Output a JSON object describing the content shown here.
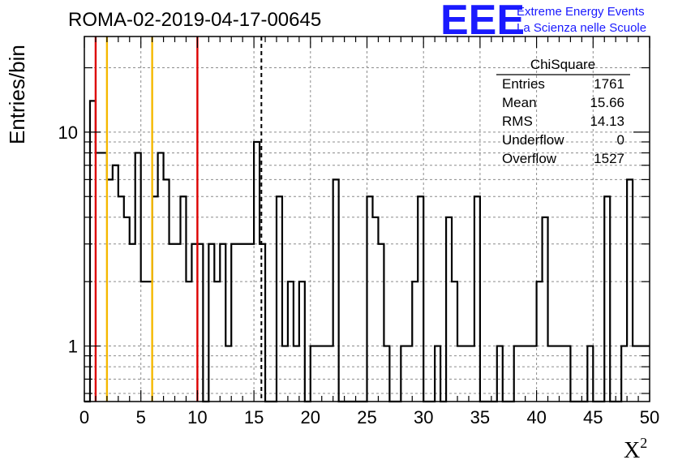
{
  "chart_data": {
    "type": "histogram",
    "title": "ROMA-02-2019-04-17-00645",
    "xlabel": "X",
    "xlabel_sup": "2",
    "ylabel": "Entries/bin",
    "xlim": [
      0,
      50
    ],
    "ylim": [
      0.55,
      28
    ],
    "yscale": "log",
    "grid": true,
    "x_ticks": [
      0,
      5,
      10,
      15,
      20,
      25,
      30,
      35,
      40,
      45,
      50
    ],
    "y_ticks": [
      1,
      10
    ],
    "y_tick_labels": [
      "1",
      "10"
    ],
    "bin_width": 0.5,
    "bin_contents": [
      0,
      14,
      8,
      8,
      6,
      7,
      5,
      4,
      3,
      8,
      2,
      2,
      5,
      8,
      6,
      3,
      3,
      5,
      2,
      3,
      3,
      0,
      3,
      2,
      3,
      1,
      3,
      3,
      3,
      3,
      9,
      3,
      0,
      0,
      5,
      1,
      2,
      1,
      2,
      0,
      1,
      1,
      1,
      1,
      6,
      0,
      0,
      0,
      0,
      0,
      5,
      4,
      3,
      1,
      0,
      0,
      1,
      1,
      2,
      5,
      0,
      0,
      1,
      0,
      4,
      2,
      1,
      1,
      1,
      5,
      0,
      0,
      0,
      1,
      0,
      0,
      1,
      1,
      1,
      1,
      2,
      4,
      1,
      1,
      1,
      1,
      0,
      0,
      0,
      1,
      0,
      0,
      5,
      0,
      0,
      1,
      6,
      1,
      1,
      1
    ],
    "vertical_lines": [
      {
        "x": 1,
        "color": "#dd0000",
        "style": "solid"
      },
      {
        "x": 2,
        "color": "#f5b800",
        "style": "solid"
      },
      {
        "x": 6,
        "color": "#f5b800",
        "style": "solid"
      },
      {
        "x": 10,
        "color": "#dd0000",
        "style": "solid"
      },
      {
        "x": 15.66,
        "color": "#000000",
        "style": "dashed"
      }
    ]
  },
  "stats_box": {
    "title": "ChiSquare",
    "rows": [
      {
        "label": "Entries",
        "value": "1761"
      },
      {
        "label": "Mean",
        "value": "15.66"
      },
      {
        "label": "RMS",
        "value": "14.13"
      },
      {
        "label": "Underflow",
        "value": "0"
      },
      {
        "label": "Overflow",
        "value": "1527"
      }
    ]
  },
  "logo": {
    "text": "EEE",
    "line1": "Extreme Energy Events",
    "line2": "La Scienza nelle Scuole",
    "color": "#1a1aff"
  }
}
